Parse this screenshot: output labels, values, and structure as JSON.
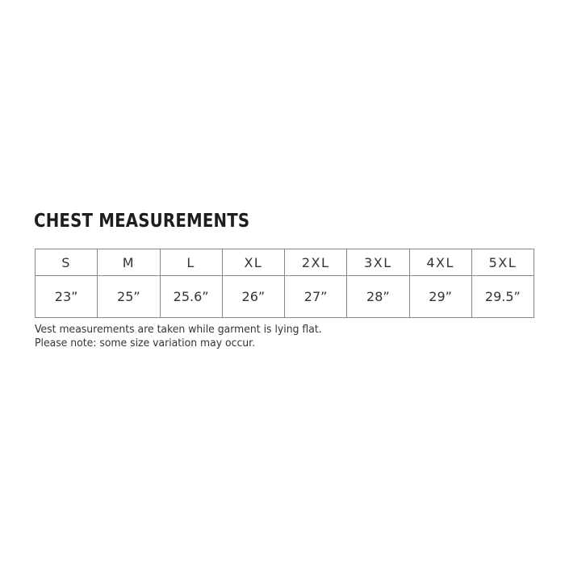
{
  "title": "CHEST MEASUREMENTS",
  "table": {
    "sizes": [
      "S",
      "M",
      "L",
      "XL",
      "2XL",
      "3XL",
      "4XL",
      "5XL"
    ],
    "chest": [
      "23”",
      "25”",
      "25.6”",
      "26”",
      "27”",
      "28”",
      "29”",
      "29.5”"
    ]
  },
  "notes": [
    "Vest measurements are taken while garment is lying flat.",
    "Please note: some size variation may occur."
  ]
}
